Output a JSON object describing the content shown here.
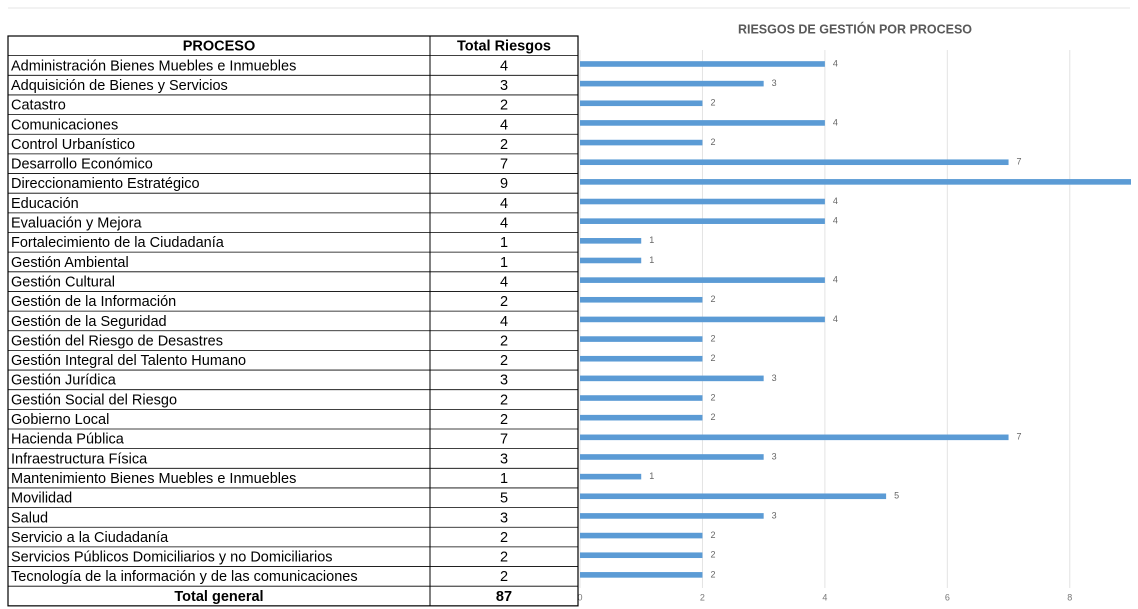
{
  "table": {
    "columns": [
      "PROCESO",
      "Total Riesgos"
    ],
    "rows": [
      [
        "Administración Bienes Muebles e Inmuebles",
        4
      ],
      [
        "Adquisición de Bienes y Servicios",
        3
      ],
      [
        "Catastro",
        2
      ],
      [
        "Comunicaciones",
        4
      ],
      [
        "Control Urbanístico",
        2
      ],
      [
        "Desarrollo Económico",
        7
      ],
      [
        "Direccionamiento Estratégico",
        9
      ],
      [
        "Educación",
        4
      ],
      [
        "Evaluación y Mejora",
        4
      ],
      [
        "Fortalecimiento de la Ciudadanía",
        1
      ],
      [
        "Gestión Ambiental",
        1
      ],
      [
        "Gestión Cultural",
        4
      ],
      [
        "Gestión de la Información",
        2
      ],
      [
        "Gestión de la Seguridad",
        4
      ],
      [
        "Gestión del Riesgo de Desastres",
        2
      ],
      [
        "Gestión Integral del Talento Humano",
        2
      ],
      [
        "Gestión Jurídica",
        3
      ],
      [
        "Gestión Social del Riesgo",
        2
      ],
      [
        "Gobierno Local",
        2
      ],
      [
        "Hacienda Pública",
        7
      ],
      [
        "Infraestructura Física",
        3
      ],
      [
        "Mantenimiento Bienes Muebles e Inmuebles",
        1
      ],
      [
        "Movilidad",
        5
      ],
      [
        "Salud",
        3
      ],
      [
        "Servicio a la Ciudadanía",
        2
      ],
      [
        "Servicios Públicos Domiciliarios y no Domiciliarios",
        2
      ],
      [
        "Tecnología de la información y de las comunicaciones",
        2
      ]
    ],
    "total": [
      "Total general",
      87
    ]
  },
  "chart_data": {
    "type": "bar",
    "orientation": "horizontal",
    "title": "RIESGOS DE GESTIÓN POR PROCESO",
    "values": [
      4,
      3,
      2,
      4,
      2,
      7,
      9,
      4,
      4,
      1,
      1,
      4,
      2,
      4,
      2,
      2,
      3,
      2,
      2,
      7,
      3,
      1,
      5,
      3,
      2,
      2,
      2
    ],
    "color": "#5b9bd5",
    "xlim": [
      0,
      9
    ],
    "xticks": [
      0,
      2,
      4,
      6,
      8
    ],
    "grid": true,
    "data_labels": true
  }
}
